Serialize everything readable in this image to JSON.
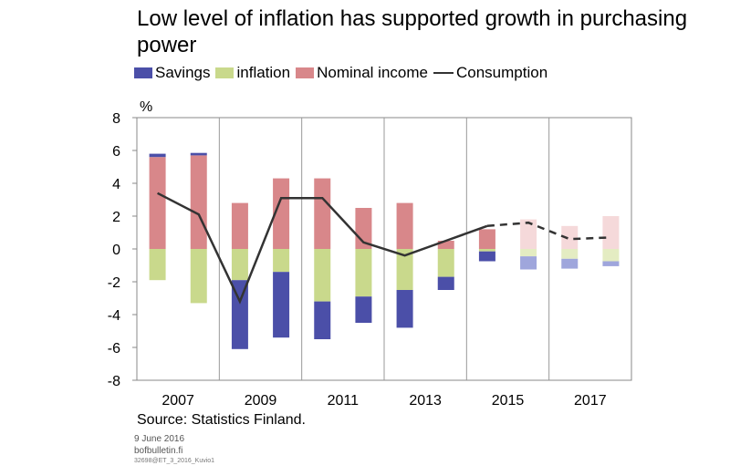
{
  "header": {
    "title": "Low level of inflation has supported growth in purchasing power"
  },
  "colors": {
    "savings": "#4b4fa8",
    "savings_forecast": "#9fa6dc",
    "inflation": "#c9d98c",
    "inflation_forecast": "#e4ecc2",
    "nominal_income": "#d8878a",
    "nominal_income_forecast": "#f5d9da",
    "consumption": "#333333"
  },
  "chart_data": {
    "type": "bar",
    "stacked": true,
    "title": "Low level of inflation has supported growth in purchasing power",
    "ylabel": "%",
    "ylim": [
      -8,
      8
    ],
    "yticks": [
      -8,
      -6,
      -4,
      -2,
      0,
      2,
      4,
      6,
      8
    ],
    "categories": [
      "2007",
      "2008",
      "2009",
      "2010",
      "2011",
      "2012",
      "2013",
      "2014",
      "2015",
      "2016",
      "2017",
      "2018"
    ],
    "xtick_labels": [
      "2007",
      "2009",
      "2011",
      "2013",
      "2015",
      "2017"
    ],
    "forecast_from": "2016",
    "grid": false,
    "legend_position": "top-left",
    "series": [
      {
        "name": "Savings",
        "type": "bar",
        "values": [
          0.2,
          0.15,
          -4.2,
          -4.0,
          -2.3,
          -1.6,
          -2.3,
          -0.8,
          -0.6,
          -0.8,
          -0.6,
          -0.3
        ]
      },
      {
        "name": "inflation",
        "type": "bar",
        "values": [
          -1.9,
          -3.3,
          -1.9,
          -1.4,
          -3.2,
          -2.9,
          -2.5,
          -1.7,
          -0.15,
          -0.45,
          -0.6,
          -0.75
        ]
      },
      {
        "name": "Nominal income",
        "type": "bar",
        "values": [
          5.6,
          5.7,
          2.8,
          4.3,
          4.3,
          2.5,
          2.8,
          0.5,
          1.2,
          1.8,
          1.4,
          2.0
        ]
      },
      {
        "name": "Consumption",
        "type": "line",
        "values": [
          3.4,
          2.1,
          -3.2,
          3.1,
          3.1,
          0.4,
          -0.4,
          0.5,
          1.4,
          1.6,
          0.6,
          0.7
        ]
      }
    ],
    "legend": [
      "Savings",
      "inflation",
      "Nominal income",
      "Consumption"
    ]
  },
  "footer": {
    "source": "Source: Statistics Finland.",
    "date": "9 June 2016",
    "site": "bofbulletin.fi",
    "code": "32698@ET_3_2016_Kuvio1"
  }
}
